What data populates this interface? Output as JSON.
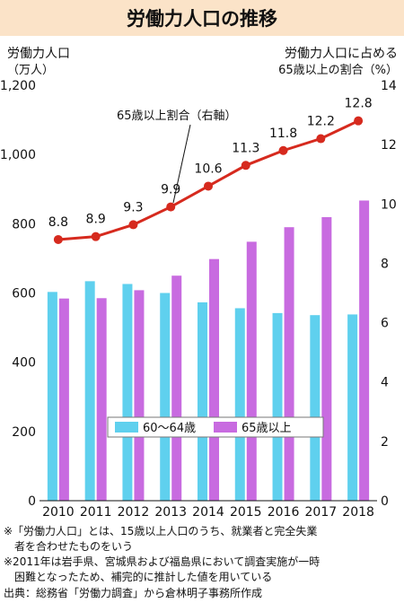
{
  "chart_data": {
    "type": "bar",
    "title": "労働力人口の推移",
    "left_axis": {
      "label_line1": "労働力人口",
      "label_line2": "（万人）",
      "ylim": [
        0,
        1200
      ],
      "ticks": [
        "0",
        "200",
        "400",
        "600",
        "800",
        "1,000",
        "1,200"
      ]
    },
    "right_axis": {
      "label_line1": "労働力人口に占める",
      "label_line2": "65歳以上の割合（%）",
      "ylim": [
        0,
        14
      ],
      "ticks": [
        "0",
        "2",
        "4",
        "6",
        "8",
        "10",
        "12",
        "14"
      ]
    },
    "categories": [
      "2010",
      "2011",
      "2012",
      "2013",
      "2014",
      "2015",
      "2016",
      "2017",
      "2018"
    ],
    "series": [
      {
        "name": "60〜64歳",
        "kind": "bar",
        "color": "#5fd0ee",
        "values": [
          603,
          634,
          626,
          600,
          573,
          556,
          542,
          536,
          538
        ]
      },
      {
        "name": "65歳以上",
        "kind": "bar",
        "color": "#c86be0",
        "values": [
          584,
          585,
          608,
          650,
          698,
          748,
          790,
          819,
          867
        ]
      },
      {
        "name": "65歳以上割合（右軸）",
        "kind": "line",
        "color": "#d62a1e",
        "axis": "right",
        "values": [
          8.8,
          8.9,
          9.3,
          9.9,
          10.6,
          11.3,
          11.8,
          12.2,
          12.8
        ],
        "labels": [
          "8.8",
          "8.9",
          "9.3",
          "9.9",
          "10.6",
          "11.3",
          "11.8",
          "12.2",
          "12.8"
        ]
      }
    ],
    "legend": {
      "placement": "bottom-center"
    },
    "notes": [
      "※「労働力人口」とは、15歳以上人口のうち、就業者と完全失業",
      "　者を合わせたものをいう",
      "※2011年は岩手県、宮城県および福島県において調査実施が一時",
      "　困難となったため、補完的に推計した値を用いている",
      "出典：総務省「労働力調査」から倉林明子事務所作成"
    ]
  }
}
